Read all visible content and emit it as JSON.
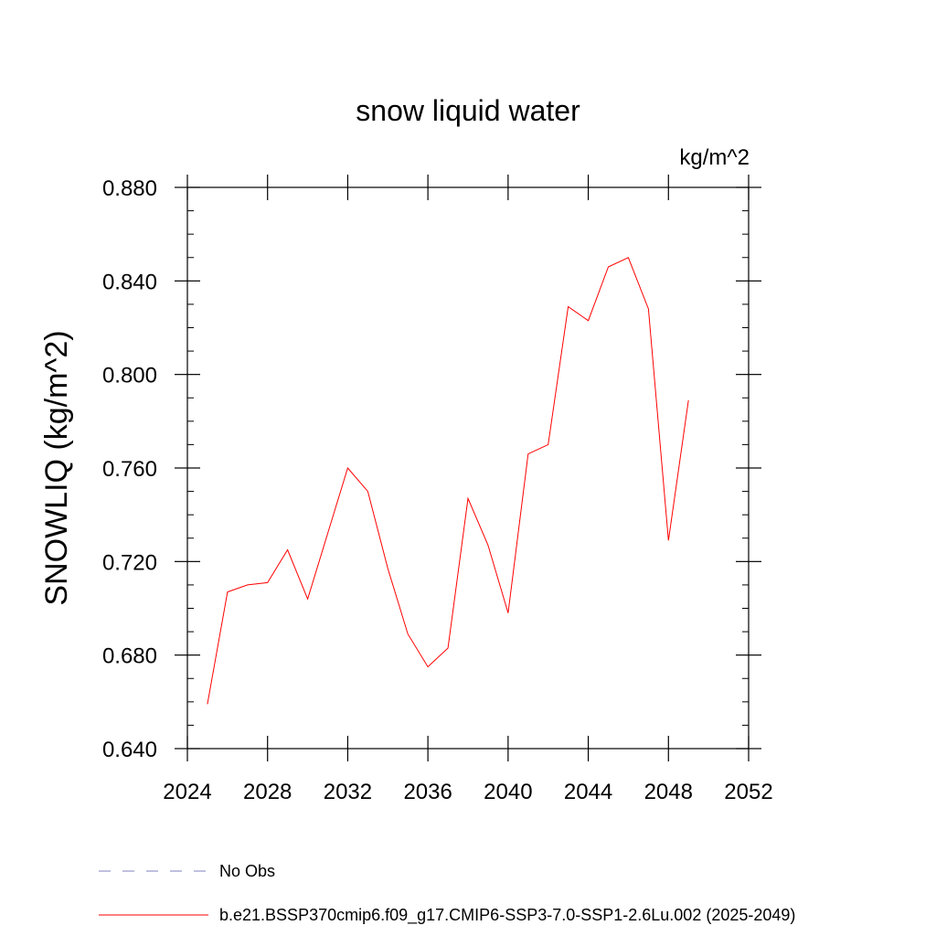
{
  "chart_data": {
    "type": "line",
    "title": "snow liquid water",
    "units": "kg/m^2",
    "xlabel": "",
    "ylabel": "SNOWLIQ  (kg/m^2)",
    "xlim": [
      2024,
      2052
    ],
    "ylim": [
      0.64,
      0.88
    ],
    "x_ticks": [
      2024,
      2028,
      2032,
      2036,
      2040,
      2044,
      2048,
      2052
    ],
    "x_tick_labels": [
      "2024",
      "2028",
      "2032",
      "2036",
      "2040",
      "2044",
      "2048",
      "2052"
    ],
    "y_ticks": [
      0.64,
      0.68,
      0.72,
      0.76,
      0.8,
      0.84,
      0.88
    ],
    "y_tick_labels": [
      "0.640",
      "0.680",
      "0.720",
      "0.760",
      "0.800",
      "0.840",
      "0.880"
    ],
    "grid": false,
    "legend_position": "bottom",
    "series": [
      {
        "name": "b.e21.BSSP370cmip6.f09_g17.CMIP6-SSP3-7.0-SSP1-2.6Lu.002 (2025-2049)",
        "color": "#ff0000",
        "style": "solid",
        "x": [
          2025,
          2026,
          2027,
          2028,
          2029,
          2030,
          2031,
          2032,
          2033,
          2034,
          2035,
          2036,
          2037,
          2038,
          2039,
          2040,
          2041,
          2042,
          2043,
          2044,
          2045,
          2046,
          2047,
          2048,
          2049
        ],
        "values": [
          0.659,
          0.707,
          0.71,
          0.711,
          0.725,
          0.704,
          0.732,
          0.76,
          0.75,
          0.717,
          0.689,
          0.675,
          0.683,
          0.747,
          0.727,
          0.698,
          0.766,
          0.77,
          0.829,
          0.823,
          0.846,
          0.85,
          0.828,
          0.729,
          0.789
        ]
      },
      {
        "name": "No Obs",
        "color": "#8080c0",
        "style": "dashed",
        "x": [],
        "values": []
      }
    ]
  }
}
